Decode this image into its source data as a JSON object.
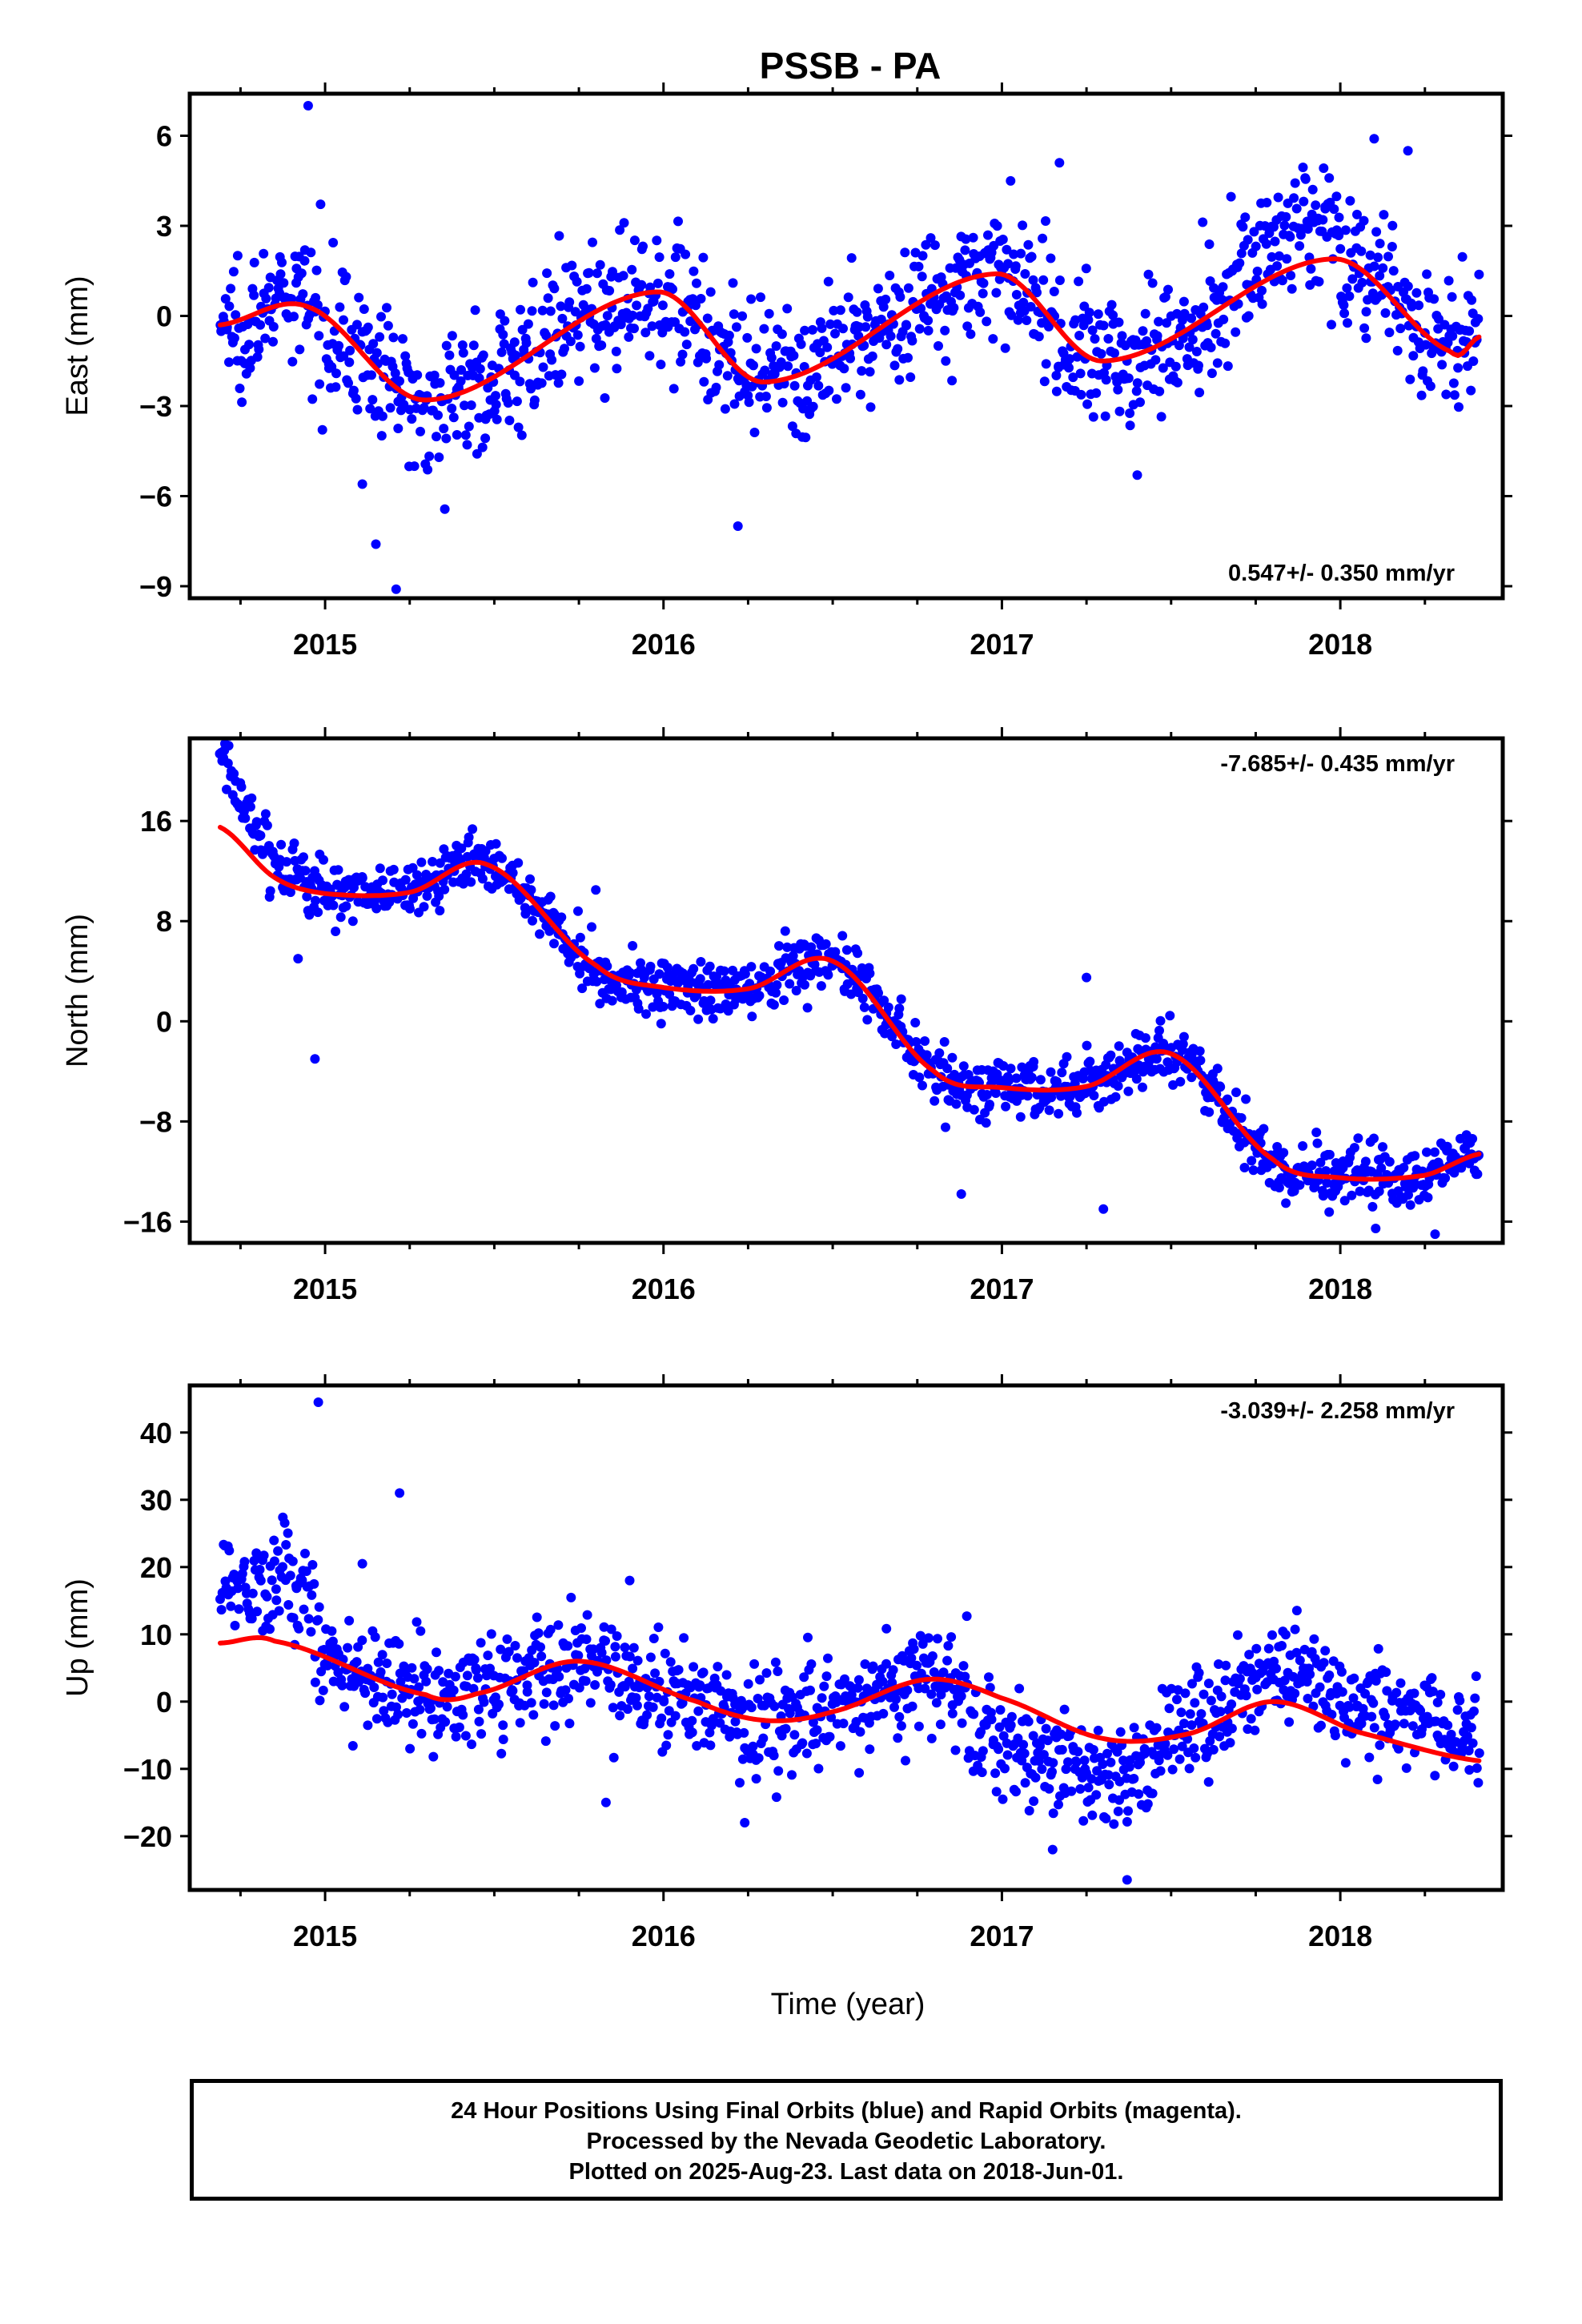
{
  "figure": {
    "title": "PSSB - PA",
    "xlabel": "Time (year)"
  },
  "footer": {
    "line1": "24 Hour Positions Using Final Orbits (blue) and Rapid Orbits (magenta).",
    "line2": "Processed by the Nevada Geodetic Laboratory.",
    "line3": "Plotted on 2025-Aug-23. Last data on 2018-Jun-01."
  },
  "colors": {
    "points": "#0000ff",
    "model": "#ff0000",
    "frame": "#000000"
  },
  "chart_data": [
    {
      "type": "scatter",
      "name": "east",
      "ylabel": "East (mm)",
      "rate_text": "0.547+/- 0.350 mm/yr",
      "rate_position": "bottom-right",
      "xlim": [
        2014.6,
        2018.48
      ],
      "ylim": [
        -9.4,
        7.4
      ],
      "xticks": [
        2015,
        2016,
        2017,
        2018
      ],
      "yticks": [
        -9,
        -6,
        -3,
        0,
        3,
        6
      ],
      "ytick_labels": [
        "−9",
        "−6",
        "−3",
        "0",
        "3",
        "6"
      ],
      "x_range": [
        2014.69,
        2018.41
      ],
      "scatter": {
        "n": 1200,
        "trend": 0.547,
        "amp": 1.8,
        "phase_peak": 2014.95,
        "noise": 1.1,
        "start_offset": -0.3
      },
      "model_fit": [
        [
          2014.69,
          -0.3
        ],
        [
          2014.95,
          0.3
        ],
        [
          2015.3,
          -2.8
        ],
        [
          2015.98,
          0.8
        ],
        [
          2016.3,
          -2.2
        ],
        [
          2016.98,
          1.4
        ],
        [
          2017.3,
          -1.5
        ],
        [
          2017.98,
          1.9
        ],
        [
          2018.33,
          -1.2
        ],
        [
          2018.41,
          -0.7
        ]
      ],
      "outliers": [
        [
          2014.95,
          7.0
        ],
        [
          2015.21,
          -9.1
        ],
        [
          2015.15,
          -7.6
        ],
        [
          2015.11,
          -5.6
        ],
        [
          2016.22,
          -7.0
        ],
        [
          2017.17,
          5.1
        ],
        [
          2017.4,
          -5.3
        ],
        [
          2018.1,
          5.9
        ],
        [
          2018.2,
          5.5
        ]
      ]
    },
    {
      "type": "scatter",
      "name": "north",
      "ylabel": "North (mm)",
      "rate_text": "-7.685+/- 0.435 mm/yr",
      "rate_position": "top-right",
      "xlim": [
        2014.6,
        2018.48
      ],
      "ylim": [
        -17.7,
        22.6
      ],
      "xticks": [
        2015,
        2016,
        2017,
        2018
      ],
      "yticks": [
        -16,
        -8,
        0,
        8,
        16
      ],
      "ytick_labels": [
        "−16",
        "−8",
        "0",
        "8",
        "16"
      ],
      "x_range": [
        2014.69,
        2018.41
      ],
      "scatter": {
        "n": 1200,
        "noise": 1.2,
        "early_offset": 6.0,
        "early_decay": 0.12
      },
      "model_fit": [
        [
          2014.69,
          15.5
        ],
        [
          2014.85,
          11.5
        ],
        [
          2015.0,
          10.2
        ],
        [
          2015.25,
          10.3
        ],
        [
          2015.48,
          12.5
        ],
        [
          2015.8,
          4.5
        ],
        [
          2016.0,
          2.7
        ],
        [
          2016.25,
          2.6
        ],
        [
          2016.5,
          4.8
        ],
        [
          2016.8,
          -4.0
        ],
        [
          2017.0,
          -5.3
        ],
        [
          2017.25,
          -5.2
        ],
        [
          2017.5,
          -2.6
        ],
        [
          2017.8,
          -11.0
        ],
        [
          2018.0,
          -12.5
        ],
        [
          2018.25,
          -12.3
        ],
        [
          2018.41,
          -10.6
        ]
      ],
      "outliers": [
        [
          2014.92,
          5.0
        ],
        [
          2014.97,
          -3.0
        ],
        [
          2015.8,
          10.5
        ],
        [
          2017.25,
          3.5
        ],
        [
          2017.3,
          -15.0
        ],
        [
          2016.88,
          -13.8
        ],
        [
          2018.28,
          -17.0
        ]
      ]
    },
    {
      "type": "scatter",
      "name": "up",
      "ylabel": "Up (mm)",
      "rate_text": "-3.039+/- 2.258 mm/yr",
      "rate_position": "top-right",
      "xlim": [
        2014.6,
        2018.48
      ],
      "ylim": [
        -28,
        47
      ],
      "xticks": [
        2015,
        2016,
        2017,
        2018
      ],
      "yticks": [
        -20,
        -10,
        0,
        10,
        20,
        30,
        40
      ],
      "ytick_labels": [
        "−20",
        "−10",
        "0",
        "10",
        "20",
        "30",
        "40"
      ],
      "x_range": [
        2014.69,
        2018.41
      ],
      "scatter": {
        "n": 1200,
        "noise": 4.0,
        "early_offset": 9.0
      },
      "model_fit": [
        [
          2014.69,
          8.7
        ],
        [
          2014.85,
          9.0
        ],
        [
          2015.3,
          1.0
        ],
        [
          2015.45,
          1.2
        ],
        [
          2015.75,
          6.0
        ],
        [
          2016.1,
          0.0
        ],
        [
          2016.3,
          -2.8
        ],
        [
          2016.5,
          -1.5
        ],
        [
          2016.78,
          3.3
        ],
        [
          2017.0,
          0.5
        ],
        [
          2017.3,
          -5.5
        ],
        [
          2017.55,
          -4.8
        ],
        [
          2017.8,
          0.0
        ],
        [
          2018.05,
          -4.5
        ],
        [
          2018.41,
          -8.8
        ]
      ],
      "outliers": [
        [
          2014.98,
          44.5
        ],
        [
          2015.22,
          31.0
        ],
        [
          2015.11,
          20.5
        ],
        [
          2015.9,
          18.0
        ],
        [
          2017.37,
          -26.5
        ],
        [
          2017.15,
          -22.0
        ],
        [
          2016.24,
          -18.0
        ],
        [
          2015.83,
          -15.0
        ]
      ]
    }
  ]
}
